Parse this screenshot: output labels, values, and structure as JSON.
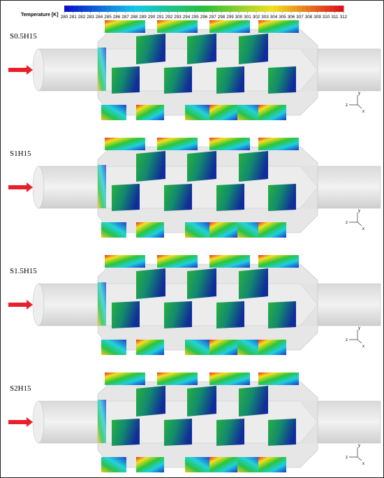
{
  "colorbar": {
    "title": "Temperature [K]",
    "ticks": [
      280,
      281,
      282,
      283,
      284,
      285,
      286,
      287,
      288,
      289,
      290,
      291,
      292,
      293,
      294,
      295,
      296,
      297,
      298,
      299,
      300,
      301,
      302,
      303,
      304,
      305,
      306,
      307,
      308,
      309,
      310,
      311,
      312
    ]
  },
  "panels": [
    {
      "label": "S0.5H15"
    },
    {
      "label": "S1H15"
    },
    {
      "label": "S1.5H15"
    },
    {
      "label": "S2H15"
    }
  ],
  "axes": {
    "labels": [
      "z",
      "y",
      "x"
    ]
  }
}
